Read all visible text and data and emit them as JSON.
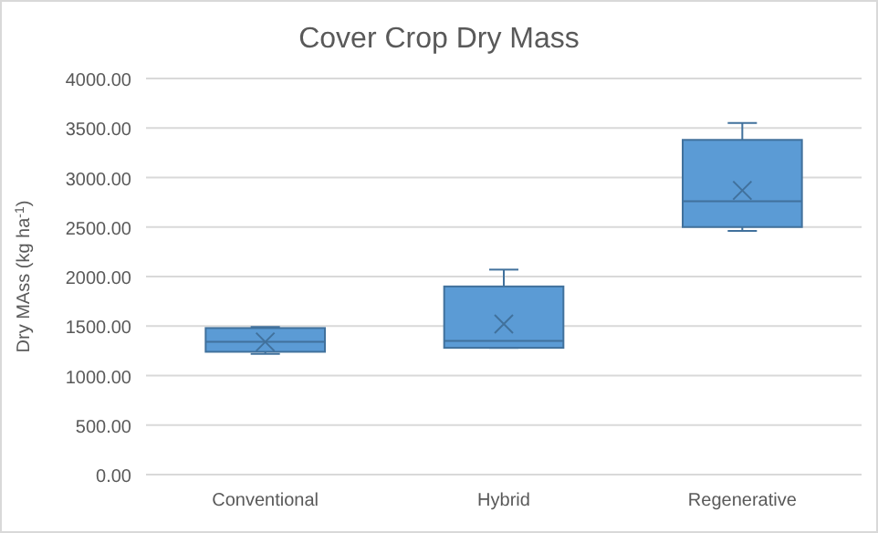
{
  "chart_data": {
    "type": "box",
    "title": "Cover Crop Dry Mass",
    "ylabel": "Dry MAss (kg ha$^{-1}$)",
    "categories": [
      "Conventional",
      "Hybrid",
      "Regenerative"
    ],
    "color": "#5b9bd5",
    "boxes": [
      {
        "low": 1220,
        "q1": 1240,
        "median": 1340,
        "q3": 1480,
        "high": 1490,
        "mean": 1340
      },
      {
        "low": 1280,
        "q1": 1280,
        "median": 1350,
        "q3": 1900,
        "high": 2070,
        "mean": 1520
      },
      {
        "low": 2460,
        "q1": 2500,
        "median": 2760,
        "q3": 3380,
        "high": 3550,
        "mean": 2870
      }
    ],
    "ylim": [
      0,
      4000
    ],
    "yticks": [
      {
        "value": 0,
        "label": "0.00"
      },
      {
        "value": 500,
        "label": "500.00"
      },
      {
        "value": 1000,
        "label": "1000.00"
      },
      {
        "value": 1500,
        "label": "1500.00"
      },
      {
        "value": 2000,
        "label": "2000.00"
      },
      {
        "value": 2500,
        "label": "2500.00"
      },
      {
        "value": 3000,
        "label": "3000.00"
      },
      {
        "value": 3500,
        "label": "3500.00"
      },
      {
        "value": 4000,
        "label": "4000.00"
      }
    ],
    "grid": "y"
  }
}
